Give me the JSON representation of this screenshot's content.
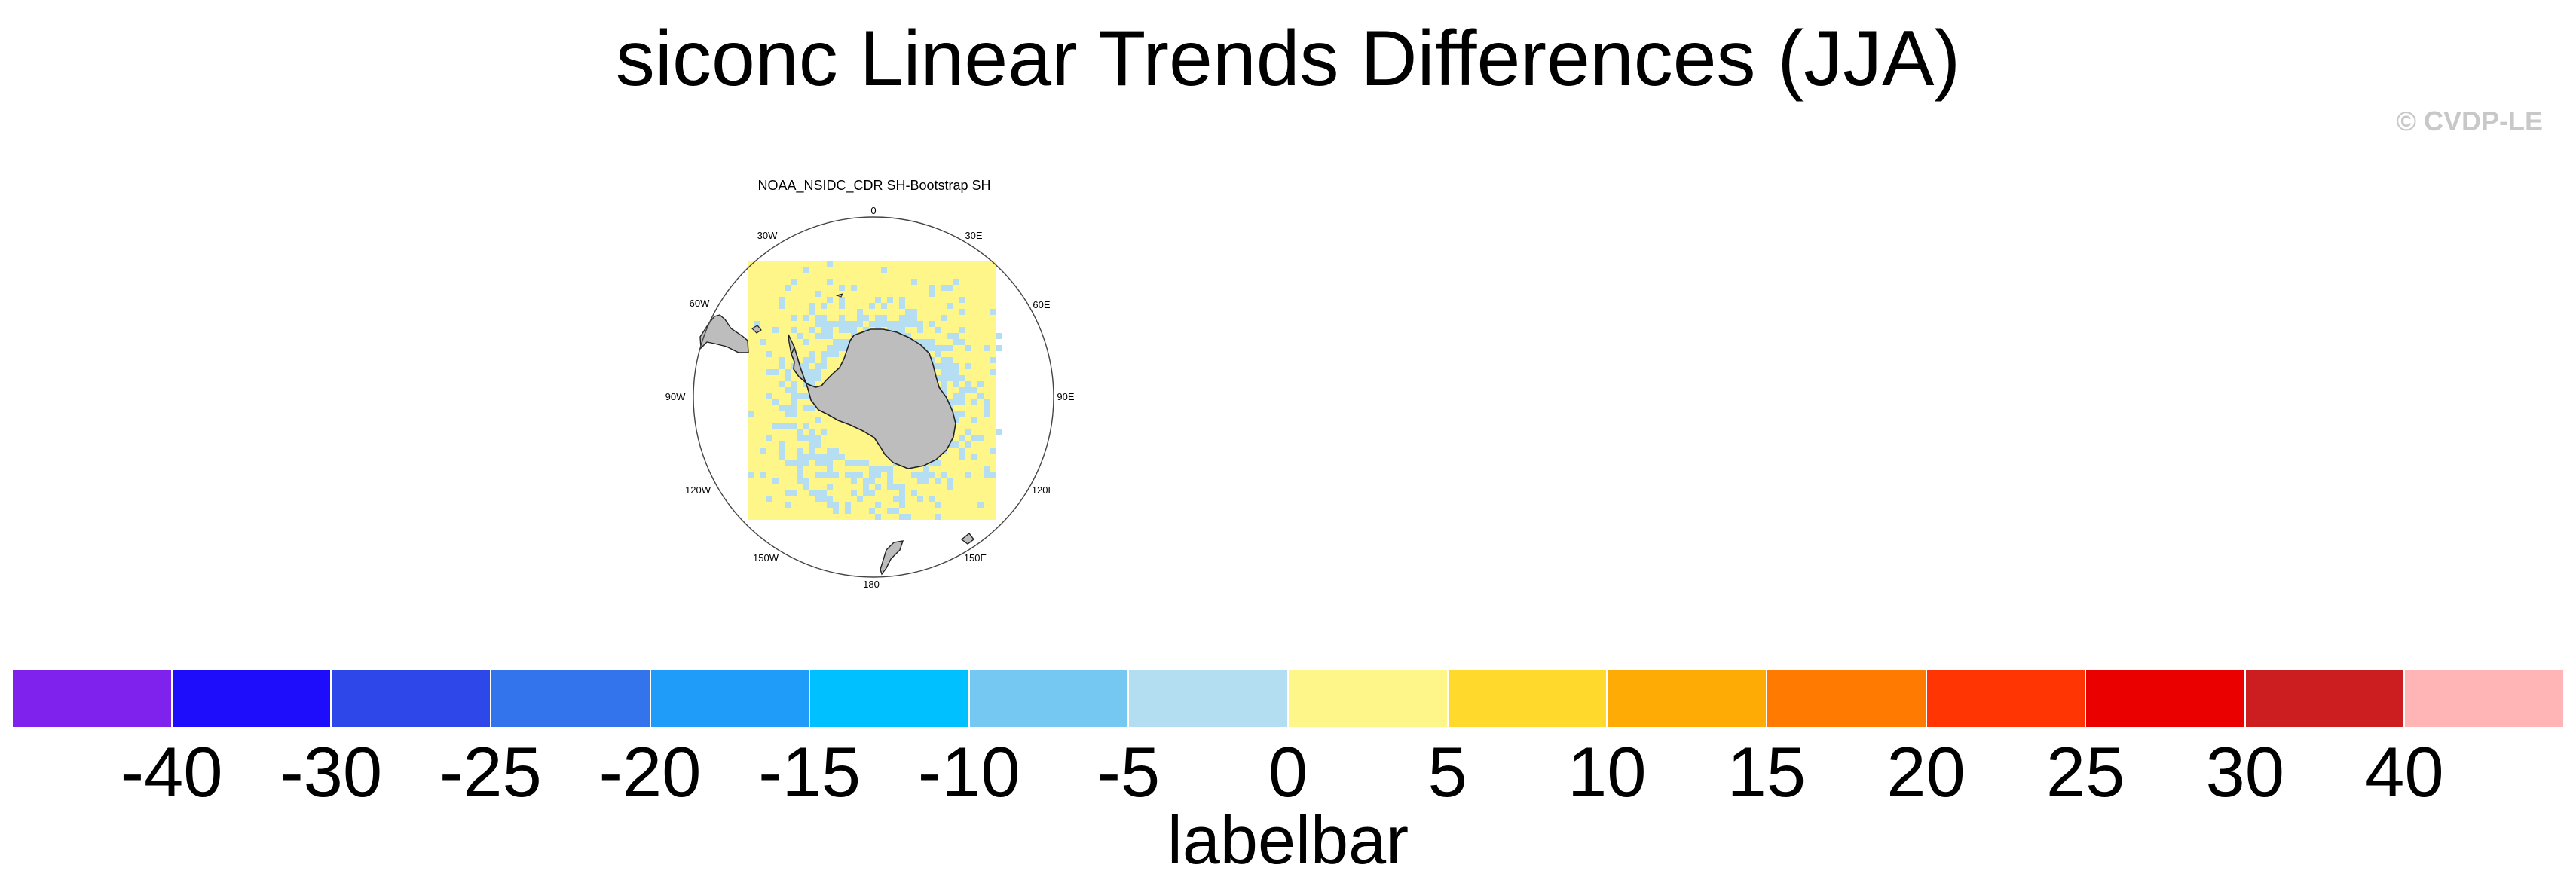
{
  "title": "siconc Linear Trends Differences (JJA)",
  "watermark": "© CVDP-LE",
  "panel": {
    "title": "NOAA_NSIDC_CDR SH-Bootstrap SH",
    "projection": "south-polar-stereographic",
    "longitude_labels": [
      "0",
      "30E",
      "60E",
      "90E",
      "120E",
      "150E",
      "180",
      "150W",
      "120W",
      "90W",
      "60W",
      "30W"
    ],
    "land_color": "#bdbdbd",
    "dominant_field_color": "#fff68a",
    "secondary_field_color": "#b5def2"
  },
  "labelbar": {
    "title": "labelbar",
    "tick_labels": [
      "-40",
      "-30",
      "-25",
      "-20",
      "-15",
      "-10",
      "-5",
      "0",
      "5",
      "10",
      "15",
      "20",
      "25",
      "30",
      "40"
    ],
    "colors": [
      "#7f22ee",
      "#1e0dfb",
      "#2d47e8",
      "#3374ec",
      "#1f9cfa",
      "#00c0ff",
      "#75c8f2",
      "#b3def2",
      "#fff68a",
      "#ffd92b",
      "#ffab05",
      "#ff7a00",
      "#ff3503",
      "#eb0000",
      "#cc1e21",
      "#ffb5b5"
    ]
  }
}
